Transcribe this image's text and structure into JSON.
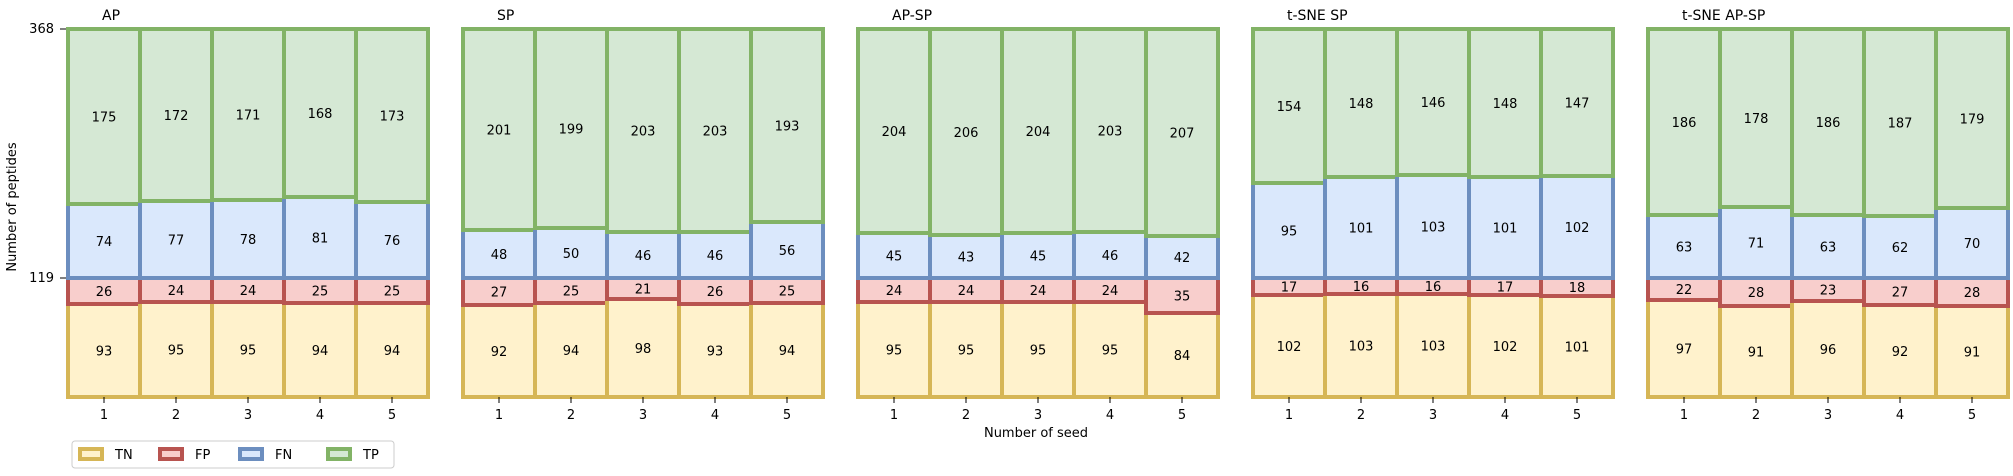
{
  "figure": {
    "ylabel": "Number of peptides",
    "xlabel": "Number of seed",
    "y_ticks": [
      "119",
      "368"
    ]
  },
  "legend": {
    "items": [
      {
        "label": "TN",
        "fill": "#fff2cc",
        "stroke": "#d6b656"
      },
      {
        "label": "FP",
        "fill": "#f8cecc",
        "stroke": "#b85450"
      },
      {
        "label": "FN",
        "fill": "#dae8fc",
        "stroke": "#6c8ebf"
      },
      {
        "label": "TP",
        "fill": "#d5e8d4",
        "stroke": "#82b366"
      }
    ]
  },
  "chart_data": {
    "type": "bar",
    "stacked": true,
    "total": 368,
    "threshold": 119,
    "categories": [
      "1",
      "2",
      "3",
      "4",
      "5"
    ],
    "series_order": [
      "TN",
      "FP",
      "FN",
      "TP"
    ],
    "panels": [
      {
        "title": "AP",
        "TN": [
          93,
          95,
          95,
          94,
          94
        ],
        "FP": [
          26,
          24,
          24,
          25,
          25
        ],
        "FN": [
          74,
          77,
          78,
          81,
          76
        ],
        "TP": [
          175,
          172,
          171,
          168,
          173
        ]
      },
      {
        "title": "SP",
        "TN": [
          92,
          94,
          98,
          93,
          94
        ],
        "FP": [
          27,
          25,
          21,
          26,
          25
        ],
        "FN": [
          48,
          50,
          46,
          46,
          56
        ],
        "TP": [
          201,
          199,
          203,
          203,
          193
        ]
      },
      {
        "title": "AP-SP",
        "TN": [
          95,
          95,
          95,
          95,
          84
        ],
        "FP": [
          24,
          24,
          24,
          24,
          35
        ],
        "FN": [
          45,
          43,
          45,
          46,
          42
        ],
        "TP": [
          204,
          206,
          204,
          203,
          207
        ]
      },
      {
        "title": "t-SNE SP",
        "TN": [
          102,
          103,
          103,
          102,
          101
        ],
        "FP": [
          17,
          16,
          16,
          17,
          18
        ],
        "FN": [
          95,
          101,
          103,
          101,
          102
        ],
        "TP": [
          154,
          148,
          146,
          148,
          147
        ]
      },
      {
        "title": "t-SNE AP-SP",
        "TN": [
          97,
          91,
          96,
          92,
          91
        ],
        "FP": [
          22,
          28,
          23,
          27,
          28
        ],
        "FN": [
          63,
          71,
          63,
          62,
          70
        ],
        "TP": [
          186,
          178,
          186,
          187,
          179
        ]
      }
    ]
  }
}
